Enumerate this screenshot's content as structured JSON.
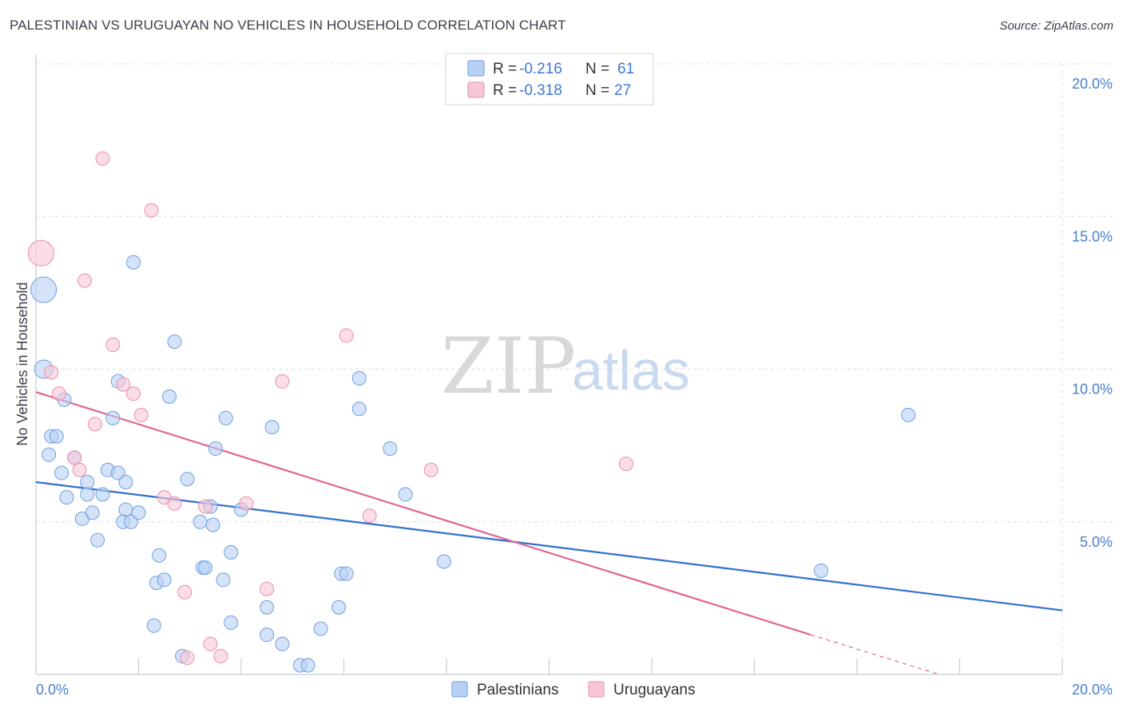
{
  "title": "PALESTINIAN VS URUGUAYAN NO VEHICLES IN HOUSEHOLD CORRELATION CHART",
  "source": "Source: ZipAtlas.com",
  "watermark": {
    "zip": "ZIP",
    "atlas": "atlas"
  },
  "colors": {
    "blue_fill": "#b7d0f4",
    "blue_stroke": "#6e9fe0",
    "blue_line": "#2f6fd0",
    "pink_fill": "#f7c6d6",
    "pink_stroke": "#ea8fae",
    "pink_line": "#e26593",
    "grid": "#d9dde3",
    "tick_text": "#4a7fd0"
  },
  "legend": {
    "rows": [
      {
        "r_label": "R =",
        "r_value": "-0.216",
        "n_label": "N =",
        "n_value": "61"
      },
      {
        "r_label": "R =",
        "r_value": "-0.318",
        "n_label": "N =",
        "n_value": "27"
      }
    ]
  },
  "bottom_legend": [
    "Palestinians",
    "Uruguayans"
  ],
  "chart_data": {
    "type": "scatter",
    "title": "PALESTINIAN VS URUGUAYAN NO VEHICLES IN HOUSEHOLD CORRELATION CHART",
    "xlabel": "",
    "ylabel": "No Vehicles in Household",
    "xlim": [
      0,
      20
    ],
    "ylim": [
      0,
      20
    ],
    "x_tick_labels": [
      "0.0%",
      "20.0%"
    ],
    "y_tick_labels": [
      "5.0%",
      "10.0%",
      "15.0%",
      "20.0%"
    ],
    "y_ticks": [
      5,
      10,
      15,
      20
    ],
    "grid": true,
    "series": [
      {
        "name": "Palestinians",
        "R": -0.216,
        "N": 61,
        "trend": {
          "x0": 0,
          "y0": 6.3,
          "x1": 20,
          "y1": 2.1
        },
        "points": [
          [
            0.15,
            12.6,
            "large"
          ],
          [
            0.15,
            10.0,
            "med"
          ],
          [
            1.9,
            13.5
          ],
          [
            2.7,
            10.9
          ],
          [
            1.6,
            9.6
          ],
          [
            0.55,
            9.0
          ],
          [
            0.3,
            7.8
          ],
          [
            0.4,
            7.8
          ],
          [
            0.25,
            7.2
          ],
          [
            0.75,
            7.1
          ],
          [
            1.5,
            8.4
          ],
          [
            2.6,
            9.1
          ],
          [
            1.0,
            6.3
          ],
          [
            1.4,
            6.7
          ],
          [
            1.6,
            6.6
          ],
          [
            1.75,
            6.3
          ],
          [
            0.5,
            6.6
          ],
          [
            0.6,
            5.8
          ],
          [
            1.0,
            5.9
          ],
          [
            1.3,
            5.9
          ],
          [
            0.9,
            5.1
          ],
          [
            1.1,
            5.3
          ],
          [
            1.75,
            5.4
          ],
          [
            1.7,
            5.0
          ],
          [
            1.85,
            5.0
          ],
          [
            2.0,
            5.3
          ],
          [
            1.2,
            4.4
          ],
          [
            2.95,
            6.4
          ],
          [
            3.5,
            7.4
          ],
          [
            3.7,
            8.4
          ],
          [
            4.6,
            8.1
          ],
          [
            3.2,
            5.0
          ],
          [
            3.4,
            5.5
          ],
          [
            3.45,
            4.9
          ],
          [
            4.0,
            5.4
          ],
          [
            2.4,
            3.9
          ],
          [
            3.25,
            3.5
          ],
          [
            3.3,
            3.5
          ],
          [
            3.8,
            4.0
          ],
          [
            3.65,
            3.1
          ],
          [
            2.35,
            3.0
          ],
          [
            2.5,
            3.1
          ],
          [
            2.3,
            1.6
          ],
          [
            2.85,
            0.6
          ],
          [
            3.8,
            1.7
          ],
          [
            4.5,
            2.2
          ],
          [
            4.5,
            1.3
          ],
          [
            4.8,
            1.0
          ],
          [
            5.15,
            0.3
          ],
          [
            5.3,
            0.3
          ],
          [
            5.55,
            1.5
          ],
          [
            5.9,
            2.2
          ],
          [
            5.95,
            3.3
          ],
          [
            6.05,
            3.3
          ],
          [
            6.3,
            9.7
          ],
          [
            6.3,
            8.7
          ],
          [
            6.9,
            7.4
          ],
          [
            7.2,
            5.9
          ],
          [
            7.95,
            3.7
          ],
          [
            15.3,
            3.4
          ],
          [
            17.0,
            8.5
          ]
        ]
      },
      {
        "name": "Uruguayans",
        "R": -0.318,
        "N": 27,
        "trend": {
          "x0": 0,
          "y0": 9.25,
          "x1": 15.1,
          "y1": 1.3,
          "dash_x1": 17.6,
          "dash_y1": 0.0
        },
        "points": [
          [
            0.1,
            13.8,
            "large"
          ],
          [
            0.3,
            9.9
          ],
          [
            1.3,
            16.9
          ],
          [
            2.25,
            15.2
          ],
          [
            0.95,
            12.9
          ],
          [
            1.5,
            10.8
          ],
          [
            0.45,
            9.2
          ],
          [
            1.7,
            9.5
          ],
          [
            1.9,
            9.2
          ],
          [
            2.05,
            8.5
          ],
          [
            1.15,
            8.2
          ],
          [
            0.75,
            7.1
          ],
          [
            0.85,
            6.7
          ],
          [
            2.5,
            5.8
          ],
          [
            2.7,
            5.6
          ],
          [
            3.3,
            5.5
          ],
          [
            4.1,
            5.6
          ],
          [
            6.05,
            11.1
          ],
          [
            4.8,
            9.6
          ],
          [
            7.7,
            6.7
          ],
          [
            11.5,
            6.9
          ],
          [
            6.5,
            5.2
          ],
          [
            2.9,
            2.7
          ],
          [
            4.5,
            2.8
          ],
          [
            3.4,
            1.0
          ],
          [
            3.6,
            0.6
          ],
          [
            2.95,
            0.55
          ]
        ]
      }
    ]
  }
}
